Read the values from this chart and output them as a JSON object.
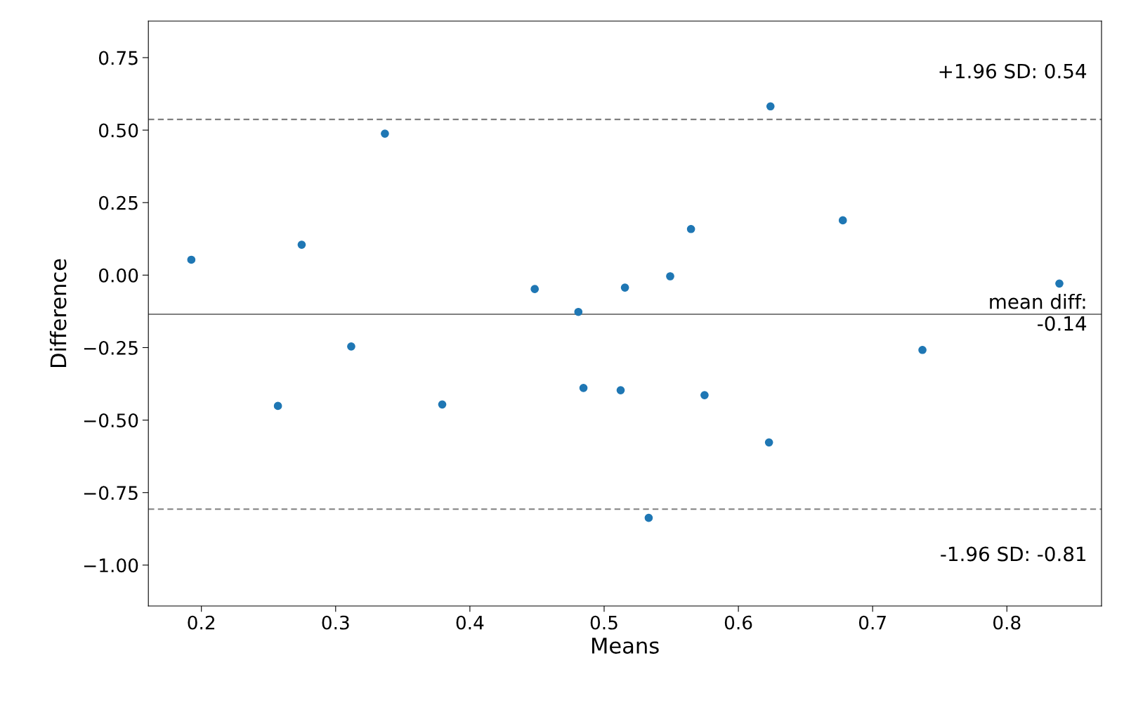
{
  "chart_data": {
    "type": "scatter",
    "xlabel": "Means",
    "ylabel": "Difference",
    "x": [
      0.1925,
      0.257,
      0.2747,
      0.3116,
      0.3367,
      0.3794,
      0.4483,
      0.4808,
      0.4846,
      0.5123,
      0.5155,
      0.5332,
      0.5492,
      0.5647,
      0.5748,
      0.6228,
      0.6239,
      0.6778,
      0.7371,
      0.8391
    ],
    "series": [
      {
        "color": "#1f77b4",
        "values": [
          0.053,
          -0.451,
          0.105,
          -0.246,
          0.488,
          -0.446,
          -0.048,
          -0.127,
          -0.389,
          -0.397,
          -0.043,
          -0.837,
          -0.004,
          0.159,
          -0.414,
          -0.577,
          0.582,
          0.189,
          -0.258,
          -0.029
        ]
      }
    ],
    "marker": "circle",
    "xlim": [
      0.1605,
      0.8705
    ],
    "xticks": [
      {
        "value": 0.2,
        "label": "0.2"
      },
      {
        "value": 0.3,
        "label": "0.3"
      },
      {
        "value": 0.4,
        "label": "0.4"
      },
      {
        "value": 0.5,
        "label": "0.5"
      },
      {
        "value": 0.6,
        "label": "0.6"
      },
      {
        "value": 0.7,
        "label": "0.7"
      },
      {
        "value": 0.8,
        "label": "0.8"
      }
    ],
    "ylim": [
      -1.141,
      0.876
    ],
    "yticks": [
      {
        "value": -1.0,
        "label": "−1.00"
      },
      {
        "value": -0.75,
        "label": "−0.75"
      },
      {
        "value": -0.5,
        "label": "−0.50"
      },
      {
        "value": -0.25,
        "label": "−0.25"
      },
      {
        "value": 0.0,
        "label": "0.00"
      },
      {
        "value": 0.25,
        "label": "0.25"
      },
      {
        "value": 0.5,
        "label": "0.50"
      },
      {
        "value": 0.75,
        "label": "0.75"
      }
    ],
    "ref_lines": [
      {
        "axis": "y",
        "value": 0.537,
        "label": "+1.96 SD: 0.54",
        "color": "#808080",
        "line_style": "dashed"
      },
      {
        "axis": "y",
        "value": -0.135,
        "label": "mean diff:\n-0.14",
        "color": "#808080",
        "line_style": "solid"
      },
      {
        "axis": "y",
        "value": -0.807,
        "label": "-1.96 SD: -0.81",
        "color": "#808080",
        "line_style": "dashed"
      }
    ],
    "grid": false,
    "legend": false
  }
}
